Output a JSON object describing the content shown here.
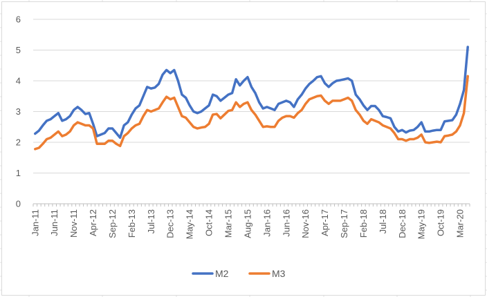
{
  "chart_data": {
    "type": "line",
    "title": "",
    "xlabel": "",
    "ylabel": "",
    "ylim": [
      0,
      6
    ],
    "y_ticks": [
      0,
      1,
      2,
      3,
      4,
      5,
      6
    ],
    "grid": "horizontal",
    "legend_position": "bottom",
    "x_ticks": [
      {
        "label": "Jan-11",
        "index": 0
      },
      {
        "label": "Jun-11",
        "index": 5
      },
      {
        "label": "Nov-11",
        "index": 10
      },
      {
        "label": "Apr-12",
        "index": 15
      },
      {
        "label": "Sep-12",
        "index": 20
      },
      {
        "label": "Feb-13",
        "index": 25
      },
      {
        "label": "Jul-13",
        "index": 30
      },
      {
        "label": "Dec-13",
        "index": 35
      },
      {
        "label": "May-14",
        "index": 40
      },
      {
        "label": "Oct-14",
        "index": 45
      },
      {
        "label": "Mar-15",
        "index": 50
      },
      {
        "label": "Aug-15",
        "index": 55
      },
      {
        "label": "Jan-16",
        "index": 60
      },
      {
        "label": "Jun-16",
        "index": 65
      },
      {
        "label": "Nov-16",
        "index": 70
      },
      {
        "label": "Apr-17",
        "index": 75
      },
      {
        "label": "Sep-17",
        "index": 80
      },
      {
        "label": "Feb-18",
        "index": 85
      },
      {
        "label": "Jul-18",
        "index": 90
      },
      {
        "label": "Dec-18",
        "index": 95
      },
      {
        "label": "May-19",
        "index": 100
      },
      {
        "label": "Oct-19",
        "index": 105
      },
      {
        "label": "Mar-20",
        "index": 110
      }
    ],
    "series": [
      {
        "name": "M2",
        "color": "#4472c4",
        "values": [
          2.28,
          2.38,
          2.55,
          2.7,
          2.75,
          2.85,
          2.95,
          2.7,
          2.75,
          2.85,
          3.05,
          3.15,
          3.05,
          2.92,
          2.95,
          2.6,
          2.2,
          2.25,
          2.3,
          2.45,
          2.45,
          2.3,
          2.15,
          2.55,
          2.65,
          2.9,
          3.1,
          3.2,
          3.5,
          3.8,
          3.75,
          3.78,
          3.9,
          4.2,
          4.35,
          4.25,
          4.35,
          4.0,
          3.55,
          3.45,
          3.2,
          3.0,
          2.95,
          3.0,
          3.1,
          3.2,
          3.55,
          3.5,
          3.35,
          3.45,
          3.55,
          3.6,
          4.05,
          3.85,
          4.0,
          4.12,
          3.8,
          3.6,
          3.3,
          3.1,
          3.15,
          3.1,
          3.05,
          3.25,
          3.3,
          3.35,
          3.3,
          3.15,
          3.4,
          3.55,
          3.75,
          3.9,
          4.0,
          4.12,
          4.15,
          3.92,
          3.8,
          3.92,
          4.0,
          4.02,
          4.05,
          4.08,
          4.0,
          3.55,
          3.4,
          3.2,
          3.05,
          3.18,
          3.18,
          3.05,
          2.85,
          2.82,
          2.78,
          2.5,
          2.35,
          2.4,
          2.32,
          2.38,
          2.4,
          2.5,
          2.65,
          2.35,
          2.35,
          2.38,
          2.4,
          2.4,
          2.68,
          2.7,
          2.72,
          2.9,
          3.25,
          3.7,
          5.1
        ]
      },
      {
        "name": "M3",
        "color": "#ed7d31",
        "values": [
          1.78,
          1.82,
          1.95,
          2.1,
          2.15,
          2.25,
          2.35,
          2.2,
          2.25,
          2.35,
          2.55,
          2.65,
          2.6,
          2.55,
          2.55,
          2.45,
          1.95,
          1.95,
          1.95,
          2.05,
          2.05,
          1.95,
          1.88,
          2.2,
          2.3,
          2.45,
          2.55,
          2.6,
          2.85,
          3.05,
          3.0,
          3.05,
          3.1,
          3.3,
          3.48,
          3.4,
          3.45,
          3.15,
          2.85,
          2.8,
          2.65,
          2.5,
          2.45,
          2.48,
          2.5,
          2.6,
          2.9,
          2.92,
          2.78,
          2.9,
          3.02,
          3.05,
          3.3,
          3.15,
          3.25,
          3.3,
          3.05,
          2.9,
          2.7,
          2.5,
          2.52,
          2.5,
          2.5,
          2.7,
          2.8,
          2.85,
          2.85,
          2.8,
          2.95,
          3.05,
          3.25,
          3.4,
          3.45,
          3.5,
          3.52,
          3.35,
          3.25,
          3.35,
          3.35,
          3.35,
          3.4,
          3.45,
          3.35,
          3.05,
          2.9,
          2.7,
          2.6,
          2.75,
          2.7,
          2.65,
          2.55,
          2.5,
          2.45,
          2.3,
          2.1,
          2.1,
          2.05,
          2.1,
          2.1,
          2.15,
          2.25,
          2.0,
          1.98,
          2.0,
          2.02,
          2.0,
          2.2,
          2.22,
          2.25,
          2.35,
          2.55,
          2.95,
          4.15
        ]
      }
    ]
  }
}
